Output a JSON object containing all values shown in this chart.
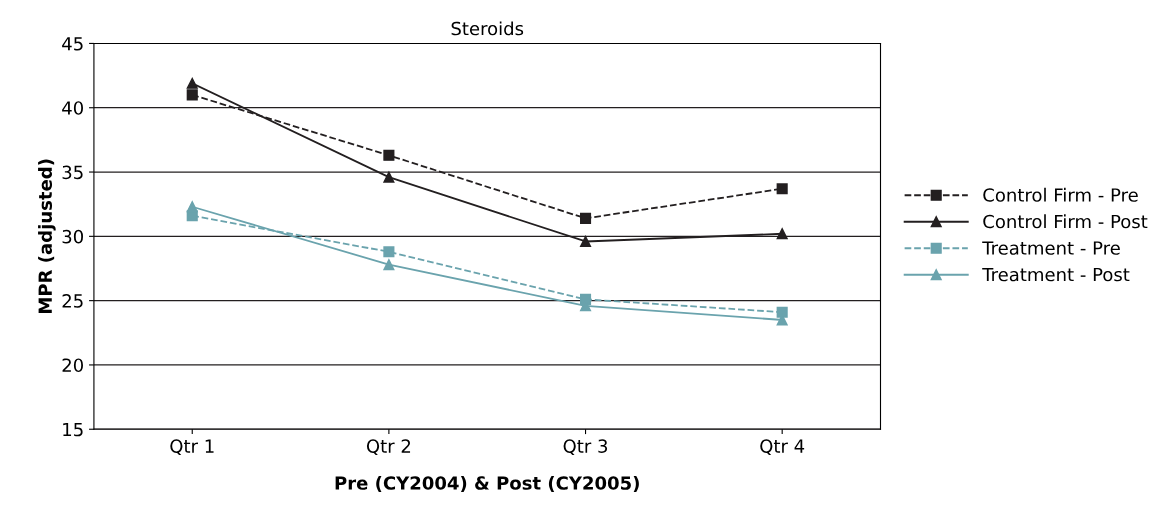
{
  "chart_data": {
    "type": "line",
    "title": "Steroids",
    "xlabel": "Pre (CY2004) & Post (CY2005)",
    "ylabel": "MPR (adjusted)",
    "categories": [
      "Qtr 1",
      "Qtr 2",
      "Qtr 3",
      "Qtr 4"
    ],
    "series": [
      {
        "name": "Control Firm - Pre",
        "color": "#231f20",
        "marker": "square",
        "line_style": "dashed",
        "values": [
          41.0,
          36.3,
          31.4,
          33.7
        ]
      },
      {
        "name": "Control Firm - Post",
        "color": "#231f20",
        "marker": "triangle",
        "line_style": "solid",
        "values": [
          41.9,
          34.6,
          29.6,
          30.2
        ]
      },
      {
        "name": "Treatment - Pre",
        "color": "#6aa3ad",
        "marker": "square",
        "line_style": "dashed",
        "values": [
          31.6,
          28.8,
          25.1,
          24.1
        ]
      },
      {
        "name": "Treatment - Post",
        "color": "#6aa3ad",
        "marker": "triangle",
        "line_style": "solid",
        "values": [
          32.3,
          27.8,
          24.6,
          23.5
        ]
      }
    ],
    "ylim": [
      15,
      45
    ],
    "yticks": [
      15,
      20,
      25,
      30,
      35,
      40,
      45
    ],
    "grid": "y",
    "legend": "right"
  }
}
